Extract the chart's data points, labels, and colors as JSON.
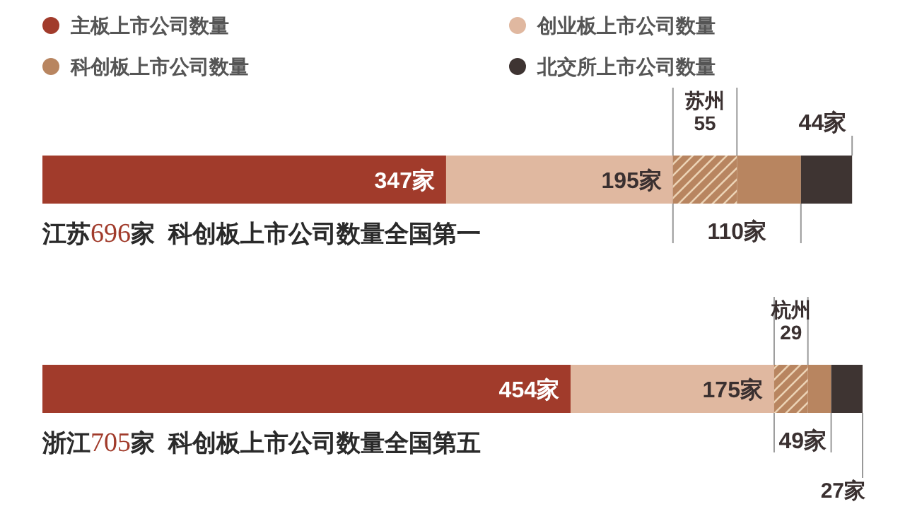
{
  "chart_data": {
    "type": "bar",
    "orientation": "horizontal",
    "stacked": true,
    "legend": "top left",
    "categories": [
      "江苏696家  科创板上市公司数量全国第一",
      "浙江705家  科创板上市公司数量全国第五"
    ],
    "series": [
      {
        "name": "主板上市公司数量",
        "color": "#a13b2b",
        "values": [
          347,
          454
        ],
        "value_labels": [
          "347家",
          "454家"
        ]
      },
      {
        "name": "创业板上市公司数量",
        "color": "#e0b8a0",
        "values": [
          195,
          175
        ],
        "value_labels": [
          "195家",
          "175家"
        ]
      },
      {
        "color": "#b88560",
        "values": [
          55,
          29
        ],
        "value_labels": [
          "苏州\n55",
          "杭州\n29"
        ]
      },
      {
        "name": "科创板上市公司数量",
        "color": "#b88560",
        "values": [
          55,
          20
        ]
      },
      {
        "name": "北交所上市公司数量",
        "color": "#3e3432",
        "values": [
          44,
          27
        ],
        "value_labels": [
          "44家",
          "27家"
        ]
      }
    ],
    "annotations": [
      "110家",
      "49家"
    ]
  }
}
